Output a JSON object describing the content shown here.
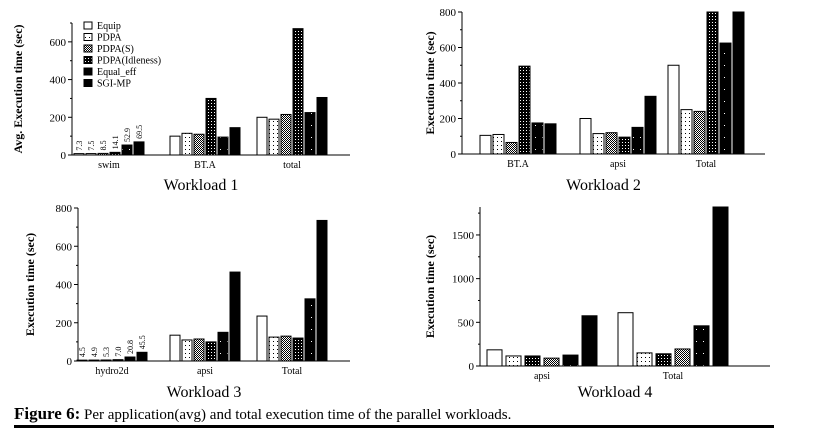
{
  "figure": {
    "caption_label": "Figure 6:",
    "caption_text": "Per application(avg) and total execution time of the parallel workloads."
  },
  "legend": [
    "Equip",
    "PDPA",
    "PDPA(S)",
    "PDPA(Idleness)",
    "Equal_eff",
    "SGI-MP"
  ],
  "chart_data": [
    {
      "type": "bar",
      "title": "Workload 1",
      "xlabel": "",
      "ylabel": "Avg. Execution time (sec)",
      "ylim": [
        0,
        700
      ],
      "yticks": [
        0,
        200,
        400,
        600
      ],
      "legend_position": "top-left",
      "categories": [
        "swim",
        "BT.A",
        "total"
      ],
      "series": [
        {
          "name": "Equip",
          "pattern": "white",
          "values": [
            7.3,
            100,
            200
          ]
        },
        {
          "name": "PDPA",
          "pattern": "dots-light",
          "values": [
            7.5,
            115,
            190
          ]
        },
        {
          "name": "PDPA(S)",
          "pattern": "hatch",
          "values": [
            8.5,
            110,
            215
          ]
        },
        {
          "name": "PDPA(Idleness)",
          "pattern": "dots-dark",
          "values": [
            14.1,
            300,
            670
          ]
        },
        {
          "name": "Equal_eff",
          "pattern": "black-dots",
          "values": [
            52.9,
            95,
            225
          ]
        },
        {
          "name": "SGI-MP",
          "pattern": "black",
          "values": [
            69.5,
            145,
            305
          ]
        }
      ],
      "data_labels": {
        "swim": [
          "7.3",
          "7.5",
          "8.5",
          "14.1",
          "52.9",
          "69.5"
        ]
      }
    },
    {
      "type": "bar",
      "title": "Workload 2",
      "xlabel": "",
      "ylabel": "Execution time (sec)",
      "ylim": [
        0,
        800
      ],
      "yticks": [
        0,
        200,
        400,
        600,
        800
      ],
      "categories": [
        "BT.A",
        "apsi",
        "Total"
      ],
      "series": [
        {
          "name": "Equip",
          "pattern": "white",
          "values": [
            105,
            200,
            500
          ]
        },
        {
          "name": "PDPA",
          "pattern": "dots-light",
          "values": [
            110,
            115,
            250
          ]
        },
        {
          "name": "PDPA(S)",
          "pattern": "hatch",
          "values": [
            65,
            120,
            240
          ]
        },
        {
          "name": "PDPA(Idleness)",
          "pattern": "dots-dark",
          "values": [
            495,
            95,
            805
          ]
        },
        {
          "name": "Equal_eff",
          "pattern": "black-dots",
          "values": [
            175,
            150,
            625
          ]
        },
        {
          "name": "SGI-MP",
          "pattern": "black",
          "values": [
            170,
            325,
            800
          ]
        }
      ]
    },
    {
      "type": "bar",
      "title": "Workload 3",
      "xlabel": "",
      "ylabel": "Execution time (sec)",
      "ylim": [
        0,
        800
      ],
      "yticks": [
        0,
        200,
        400,
        600,
        800
      ],
      "categories": [
        "hydro2d",
        "apsi",
        "Total"
      ],
      "series": [
        {
          "name": "Equip",
          "pattern": "white",
          "values": [
            4.5,
            135,
            235
          ]
        },
        {
          "name": "PDPA",
          "pattern": "dots-light",
          "values": [
            4.9,
            110,
            125
          ]
        },
        {
          "name": "PDPA(S)",
          "pattern": "hatch",
          "values": [
            5.3,
            115,
            130
          ]
        },
        {
          "name": "PDPA(Idleness)",
          "pattern": "dots-dark",
          "values": [
            7.0,
            100,
            120
          ]
        },
        {
          "name": "Equal_eff",
          "pattern": "black-dots",
          "values": [
            20.8,
            150,
            325
          ]
        },
        {
          "name": "SGI-MP",
          "pattern": "black",
          "values": [
            45.5,
            465,
            735
          ]
        }
      ],
      "data_labels": {
        "hydro2d": [
          "4.5",
          "4.9",
          "5.3",
          "7.0",
          "20.8",
          "45.5"
        ]
      }
    },
    {
      "type": "bar",
      "title": "Workload 4",
      "xlabel": "",
      "ylabel": "Execution time (sec)",
      "ylim": [
        0,
        1820
      ],
      "yticks": [
        0,
        500,
        1000,
        1500
      ],
      "categories": [
        "apsi",
        "Total"
      ],
      "series": [
        {
          "name": "Equip",
          "pattern": "white",
          "values": [
            185,
            610
          ]
        },
        {
          "name": "PDPA",
          "pattern": "dots-light",
          "values": [
            115,
            150
          ]
        },
        {
          "name": "PDPA(Idleness)",
          "pattern": "dots-dark",
          "values": [
            115,
            140
          ]
        },
        {
          "name": "PDPA(S)",
          "pattern": "hatch",
          "values": [
            90,
            195
          ]
        },
        {
          "name": "Equal_eff",
          "pattern": "black-dots",
          "values": [
            125,
            460
          ]
        },
        {
          "name": "SGI-MP",
          "pattern": "black",
          "values": [
            575,
            1820
          ]
        }
      ]
    }
  ]
}
